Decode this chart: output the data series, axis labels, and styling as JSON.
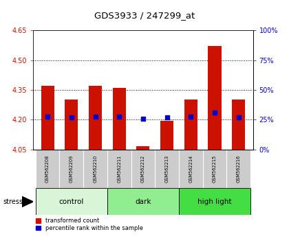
{
  "title": "GDS3933 / 247299_at",
  "samples": [
    "GSM562208",
    "GSM562209",
    "GSM562210",
    "GSM562211",
    "GSM562212",
    "GSM562213",
    "GSM562214",
    "GSM562215",
    "GSM562216"
  ],
  "red_values": [
    4.37,
    4.3,
    4.37,
    4.36,
    4.065,
    4.195,
    4.3,
    4.57,
    4.3
  ],
  "blue_values": [
    4.215,
    4.21,
    4.215,
    4.215,
    4.205,
    4.21,
    4.215,
    4.235,
    4.21
  ],
  "ymin": 4.05,
  "ymax": 4.65,
  "yticks_left": [
    4.05,
    4.2,
    4.35,
    4.5,
    4.65
  ],
  "yticks_right": [
    0,
    25,
    50,
    75,
    100
  ],
  "groups": [
    {
      "label": "control",
      "start": 0,
      "end": 3,
      "color": "#d8f5d8"
    },
    {
      "label": "dark",
      "start": 3,
      "end": 6,
      "color": "#90ee90"
    },
    {
      "label": "high light",
      "start": 6,
      "end": 9,
      "color": "#44dd44"
    }
  ],
  "bar_color": "#cc1100",
  "blue_color": "#0000cc",
  "bar_width": 0.55,
  "blue_square_size": 25,
  "stress_label": "stress",
  "legend_red": "transformed count",
  "legend_blue": "percentile rank within the sample",
  "background_color": "#ffffff",
  "plot_bg": "#ffffff",
  "tick_label_bg": "#cccccc",
  "title_color": "#000000",
  "left_axis_color": "#cc1100",
  "right_axis_color": "#0000cc"
}
